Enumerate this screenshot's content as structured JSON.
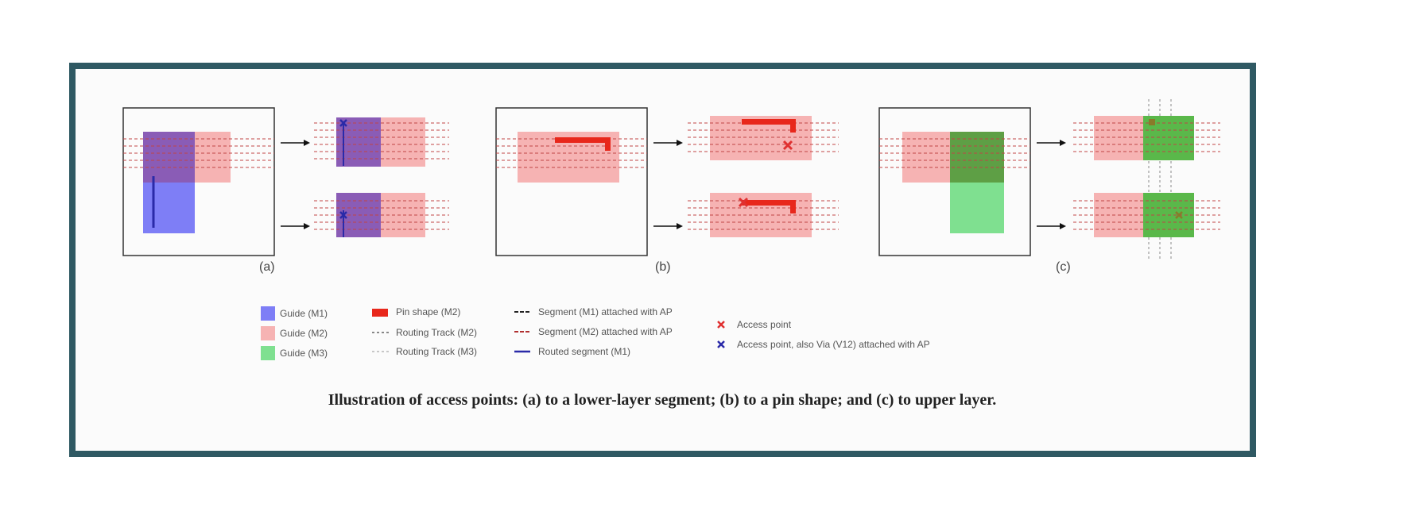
{
  "figure": {
    "caption": "Illustration of access points: (a) to a lower-layer segment; (b) to a pin shape; and (c) to upper layer.",
    "panels": [
      {
        "label": "(a)"
      },
      {
        "label": "(b)"
      },
      {
        "label": "(c)"
      }
    ],
    "legend": {
      "col1": [
        "Guide (M1)",
        "Guide (M2)",
        "Guide (M3)"
      ],
      "col2": [
        "Pin shape (M2)",
        "Routing Track (M2)",
        "Routing Track (M3)"
      ],
      "col3": [
        "Segment (M1) attached with AP",
        "Segment (M2) attached with AP",
        "Routed segment (M1)"
      ],
      "col4": [
        "Access point",
        "Access point, also Via (V12) attached with AP"
      ]
    },
    "colors": {
      "frame": "#2f5963",
      "guide_m1": "#7e7ef6",
      "guide_m2": "#f6b3b3",
      "guide_m3": "#7fe090",
      "pin_shape": "#e8271b",
      "access_point": "#e03030",
      "via_access_point": "#2a2aa8",
      "routed_segment": "#2a2aa8"
    }
  }
}
